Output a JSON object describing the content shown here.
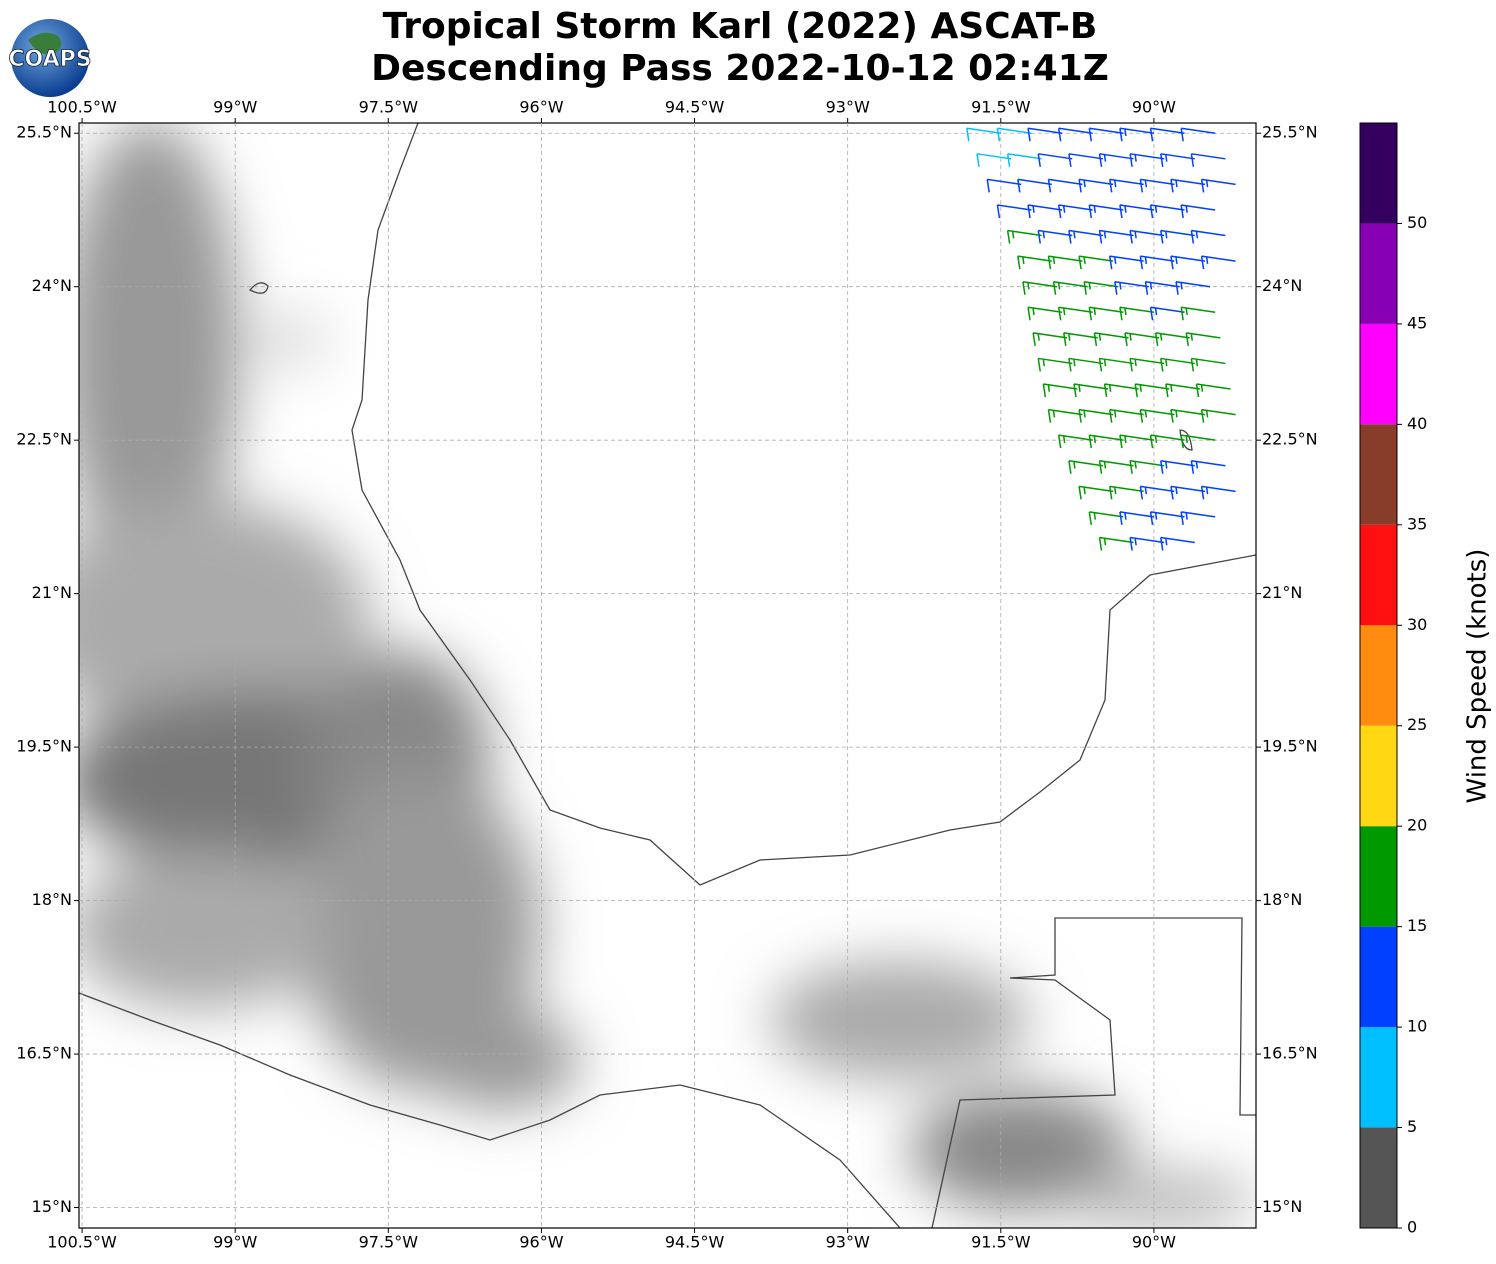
{
  "logo": {
    "text": "COAPS"
  },
  "map": {
    "type": "wind-barb-map",
    "title": [
      "Tropical Storm Karl (2022) ASCAT-B",
      "Descending Pass 2022-10-12 02:41Z"
    ],
    "xlim": [
      -100.53,
      -89.0
    ],
    "ylim": [
      14.8,
      25.6
    ],
    "xticks": [
      {
        "value": -100.5,
        "label": "100.5°W"
      },
      {
        "value": -99,
        "label": "99°W"
      },
      {
        "value": -97.5,
        "label": "97.5°W"
      },
      {
        "value": -96,
        "label": "96°W"
      },
      {
        "value": -94.5,
        "label": "94.5°W"
      },
      {
        "value": -93,
        "label": "93°W"
      },
      {
        "value": -91.5,
        "label": "91.5°W"
      },
      {
        "value": -90,
        "label": "90°W"
      }
    ],
    "yticks": [
      {
        "value": 25.5,
        "label": "25.5°N"
      },
      {
        "value": 24,
        "label": "24°N"
      },
      {
        "value": 22.5,
        "label": "22.5°N"
      },
      {
        "value": 21,
        "label": "21°N"
      },
      {
        "value": 19.5,
        "label": "19.5°N"
      },
      {
        "value": 18,
        "label": "18°N"
      },
      {
        "value": 16.5,
        "label": "16.5°N"
      },
      {
        "value": 15,
        "label": "15°N"
      }
    ],
    "grid": true,
    "barbs": [
      {
        "lat": 25.5,
        "lon": [
          -91.5,
          -91.2,
          -90.9,
          -90.6,
          -90.3,
          -90.0,
          -89.7,
          -89.4
        ],
        "speed": [
          8,
          9,
          12,
          12,
          12,
          13,
          12,
          12
        ]
      },
      {
        "lat": 25.25,
        "lon": [
          -91.4,
          -91.1,
          -90.8,
          -90.5,
          -90.2,
          -89.9,
          -89.6,
          -89.3
        ],
        "speed": [
          9,
          9,
          12,
          12,
          13,
          13,
          13,
          12
        ]
      },
      {
        "lat": 25.0,
        "lon": [
          -91.3,
          -91.0,
          -90.7,
          -90.4,
          -90.1,
          -89.8,
          -89.5,
          -89.2
        ],
        "speed": [
          12,
          12,
          12,
          13,
          13,
          13,
          13,
          13
        ]
      },
      {
        "lat": 24.75,
        "lon": [
          -91.2,
          -90.9,
          -90.6,
          -90.3,
          -90.0,
          -89.7,
          -89.4
        ],
        "speed": [
          12,
          13,
          13,
          13,
          13,
          13,
          13
        ]
      },
      {
        "lat": 24.5,
        "lon": [
          -91.1,
          -90.8,
          -90.5,
          -90.2,
          -89.9,
          -89.6,
          -89.3
        ],
        "speed": [
          17,
          13,
          13,
          13,
          13,
          13,
          13
        ]
      },
      {
        "lat": 24.25,
        "lon": [
          -91.0,
          -90.7,
          -90.4,
          -90.1,
          -89.8,
          -89.5,
          -89.2
        ],
        "speed": [
          17,
          17,
          17,
          13,
          13,
          13,
          13
        ]
      },
      {
        "lat": 24.0,
        "lon": [
          -90.95,
          -90.65,
          -90.35,
          -90.05,
          -89.75,
          -89.45
        ],
        "speed": [
          17,
          17,
          17,
          13,
          13,
          13
        ]
      },
      {
        "lat": 23.75,
        "lon": [
          -90.9,
          -90.6,
          -90.3,
          -90.0,
          -89.7,
          -89.4
        ],
        "speed": [
          17,
          17,
          17,
          17,
          13,
          17
        ]
      },
      {
        "lat": 23.5,
        "lon": [
          -90.85,
          -90.55,
          -90.25,
          -89.95,
          -89.65,
          -89.35
        ],
        "speed": [
          17,
          17,
          17,
          17,
          17,
          17
        ]
      },
      {
        "lat": 23.25,
        "lon": [
          -90.8,
          -90.5,
          -90.2,
          -89.9,
          -89.6,
          -89.3
        ],
        "speed": [
          17,
          17,
          17,
          17,
          17,
          17
        ]
      },
      {
        "lat": 23.0,
        "lon": [
          -90.75,
          -90.45,
          -90.15,
          -89.85,
          -89.55,
          -89.25
        ],
        "speed": [
          17,
          17,
          17,
          17,
          17,
          17
        ]
      },
      {
        "lat": 22.75,
        "lon": [
          -90.7,
          -90.4,
          -90.1,
          -89.8,
          -89.5,
          -89.2
        ],
        "speed": [
          17,
          17,
          17,
          17,
          17,
          17
        ]
      },
      {
        "lat": 22.5,
        "lon": [
          -90.6,
          -90.3,
          -90.0,
          -89.7,
          -89.4
        ],
        "speed": [
          17,
          17,
          17,
          17,
          17
        ]
      },
      {
        "lat": 22.25,
        "lon": [
          -90.5,
          -90.2,
          -89.9,
          -89.6,
          -89.3
        ],
        "speed": [
          17,
          17,
          17,
          13,
          13
        ]
      },
      {
        "lat": 22.0,
        "lon": [
          -90.4,
          -90.1,
          -89.8,
          -89.5,
          -89.2
        ],
        "speed": [
          17,
          17,
          13,
          13,
          13
        ]
      },
      {
        "lat": 21.75,
        "lon": [
          -90.3,
          -90.0,
          -89.7,
          -89.4
        ],
        "speed": [
          17,
          13,
          13,
          13
        ]
      },
      {
        "lat": 21.5,
        "lon": [
          -90.2,
          -89.9,
          -89.6
        ],
        "speed": [
          17,
          13,
          13
        ]
      }
    ],
    "colorbar": {
      "label": "Wind Speed (knots)",
      "lim": [
        0,
        55
      ],
      "bounds": [
        0,
        5,
        10,
        15,
        20,
        25,
        30,
        35,
        40,
        45,
        50,
        55
      ],
      "colors": [
        "#555555",
        "#00bfff",
        "#0040ff",
        "#009900",
        "#ffd712",
        "#ff8c0f",
        "#ff1010",
        "#873d2a",
        "#ff00ff",
        "#8800b4",
        "#330060"
      ],
      "ticks": [
        0,
        5,
        10,
        15,
        20,
        25,
        30,
        35,
        40,
        45,
        50
      ]
    }
  }
}
